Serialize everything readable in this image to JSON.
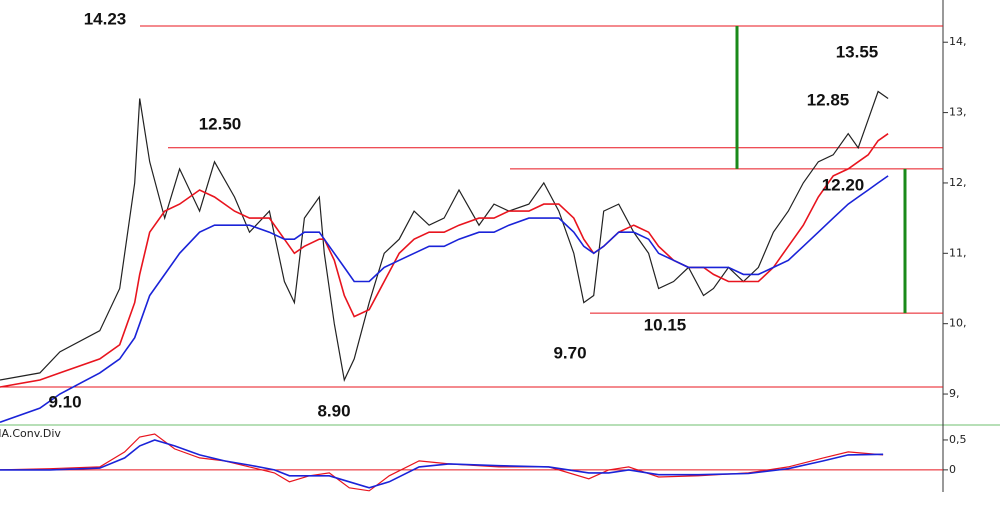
{
  "chart_data": [
    {
      "type": "line",
      "x": [
        0,
        8,
        12,
        20,
        24,
        27,
        28,
        30,
        33,
        36,
        40,
        43,
        47,
        50,
        54,
        57,
        59,
        61,
        64,
        65,
        67,
        69,
        71,
        74,
        77,
        80,
        83,
        86,
        89,
        92,
        96,
        99,
        102,
        106,
        109,
        112,
        115,
        117,
        119,
        121,
        124,
        127,
        130,
        132,
        135,
        138,
        141,
        143,
        146,
        149,
        152,
        155,
        158,
        161,
        164,
        167,
        170,
        172,
        174,
        176,
        178
      ],
      "series": [
        {
          "color": "#222222",
          "values": [
            9.2,
            9.3,
            9.6,
            9.9,
            10.5,
            12.0,
            13.2,
            12.3,
            11.5,
            12.2,
            11.6,
            12.3,
            11.8,
            11.3,
            11.6,
            10.6,
            10.3,
            11.5,
            11.8,
            11.0,
            10.0,
            9.2,
            9.5,
            10.3,
            11.0,
            11.2,
            11.6,
            11.4,
            11.5,
            11.9,
            11.4,
            11.7,
            11.6,
            11.7,
            12.0,
            11.6,
            11.0,
            10.3,
            10.4,
            11.6,
            11.7,
            11.3,
            11.0,
            10.5,
            10.6,
            10.8,
            10.4,
            10.5,
            10.8,
            10.6,
            10.8,
            11.3,
            11.6,
            12.0,
            12.3,
            12.4,
            12.7,
            12.5,
            12.9,
            13.3,
            13.2
          ]
        },
        {
          "color": "#e8141e",
          "values": [
            9.1,
            9.2,
            9.3,
            9.5,
            9.7,
            10.3,
            10.7,
            11.3,
            11.6,
            11.7,
            11.9,
            11.8,
            11.6,
            11.5,
            11.5,
            11.2,
            11.0,
            11.1,
            11.2,
            11.2,
            10.9,
            10.4,
            10.1,
            10.2,
            10.6,
            11.0,
            11.2,
            11.3,
            11.3,
            11.4,
            11.5,
            11.5,
            11.6,
            11.6,
            11.7,
            11.7,
            11.5,
            11.2,
            11.0,
            11.1,
            11.3,
            11.4,
            11.3,
            11.1,
            10.9,
            10.8,
            10.8,
            10.7,
            10.6,
            10.6,
            10.6,
            10.8,
            11.1,
            11.4,
            11.8,
            12.1,
            12.2,
            12.3,
            12.4,
            12.6,
            12.7
          ]
        },
        {
          "color": "#1a23d8",
          "values": [
            8.6,
            8.8,
            9.0,
            9.3,
            9.5,
            9.8,
            10.0,
            10.4,
            10.7,
            11.0,
            11.3,
            11.4,
            11.4,
            11.4,
            11.3,
            11.2,
            11.2,
            11.3,
            11.3,
            11.2,
            11.0,
            10.8,
            10.6,
            10.6,
            10.8,
            10.9,
            11.0,
            11.1,
            11.1,
            11.2,
            11.3,
            11.3,
            11.4,
            11.5,
            11.5,
            11.5,
            11.3,
            11.1,
            11.0,
            11.1,
            11.3,
            11.3,
            11.2,
            11.0,
            10.9,
            10.8,
            10.8,
            10.8,
            10.8,
            10.7,
            10.7,
            10.8,
            10.9,
            11.1,
            11.3,
            11.5,
            11.7,
            11.8,
            11.9,
            12.0,
            12.1
          ]
        }
      ],
      "xlim": [
        0,
        189
      ],
      "ylim": [
        8.56,
        14.6
      ],
      "yticks": [
        {
          "value": 9,
          "label": "9,"
        },
        {
          "value": 10,
          "label": "10,"
        },
        {
          "value": 11,
          "label": "11,"
        },
        {
          "value": 12,
          "label": "12,"
        },
        {
          "value": 13,
          "label": "13,"
        },
        {
          "value": 14,
          "label": "14,"
        }
      ],
      "levels": [
        {
          "value": 14.23,
          "label": "14.23"
        },
        {
          "value": 12.5,
          "label": "12.50"
        },
        {
          "value": 12.2,
          "label": "12.20"
        },
        {
          "value": 10.15,
          "label": "10.15"
        },
        {
          "value": 9.1,
          "label": "9.10"
        }
      ],
      "level_color": "#e8141e",
      "range_color": "#1a8a1a",
      "annotations": [
        {
          "value": 13.55,
          "label": "13.55"
        },
        {
          "value": 12.85,
          "label": "12.85"
        },
        {
          "value": 9.7,
          "label": "9.70"
        },
        {
          "value": 8.9,
          "label": "8.90"
        }
      ]
    },
    {
      "type": "line",
      "title": "MA.Conv.Div",
      "x": [
        0,
        10,
        20,
        25,
        28,
        31,
        35,
        40,
        45,
        50,
        55,
        58,
        62,
        66,
        70,
        74,
        78,
        84,
        90,
        100,
        110,
        118,
        122,
        126,
        132,
        140,
        150,
        158,
        165,
        170,
        177
      ],
      "series": [
        {
          "color": "#e8141e",
          "values": [
            0.0,
            0.02,
            0.05,
            0.3,
            0.55,
            0.6,
            0.35,
            0.2,
            0.15,
            0.05,
            -0.05,
            -0.2,
            -0.1,
            -0.05,
            -0.3,
            -0.35,
            -0.1,
            0.15,
            0.1,
            0.05,
            0.05,
            -0.15,
            0.0,
            0.05,
            -0.12,
            -0.1,
            -0.05,
            0.05,
            0.2,
            0.3,
            0.25
          ]
        },
        {
          "color": "#1a23d8",
          "values": [
            0.0,
            0.0,
            0.03,
            0.2,
            0.4,
            0.5,
            0.4,
            0.25,
            0.15,
            0.08,
            0.0,
            -0.1,
            -0.1,
            -0.1,
            -0.2,
            -0.3,
            -0.2,
            0.05,
            0.1,
            0.07,
            0.05,
            -0.05,
            -0.05,
            0.0,
            -0.08,
            -0.08,
            -0.06,
            0.02,
            0.15,
            0.25,
            0.26
          ]
        }
      ],
      "xlim": [
        0,
        189
      ],
      "ylim": [
        -0.37,
        0.75
      ],
      "yticks": [
        0,
        {
          "value": 0.5,
          "label": "0,5"
        }
      ],
      "reference_line": 0,
      "reference_color": "#e8141e"
    }
  ]
}
